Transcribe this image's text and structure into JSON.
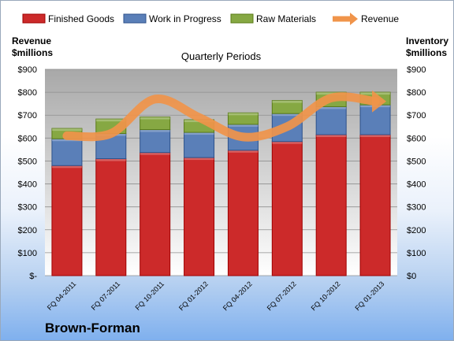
{
  "company_label": "Brown-Forman",
  "chart_data": {
    "type": "bar",
    "stacked": true,
    "title": "Quarterly Periods",
    "left_axis_title": "Revenue $millions",
    "right_axis_title": "Inventory $millions",
    "categories": [
      "FQ 04-2011",
      "FQ 07-2011",
      "FQ 10-2011",
      "FQ 01-2012",
      "FQ 04-2012",
      "FQ 07-2012",
      "FQ 10-2012",
      "FQ 01-2013"
    ],
    "left_tick_labels": [
      "$-",
      "$100",
      "$200",
      "$300",
      "$400",
      "$500",
      "$600",
      "$700",
      "$800",
      "$900"
    ],
    "right_tick_labels": [
      "$0",
      "$100",
      "$200",
      "$300",
      "$400",
      "$500",
      "$600",
      "$700",
      "$800",
      "$900"
    ],
    "ylim": [
      0,
      900
    ],
    "grid": true,
    "legend_position": "top",
    "series": [
      {
        "name": "Finished Goods",
        "kind": "bar",
        "color": "#cc2a2a",
        "values": [
          480,
          510,
          537,
          515,
          547,
          585,
          615,
          615
        ]
      },
      {
        "name": "Work in Progress",
        "kind": "bar",
        "color": "#5a7fb8",
        "values": [
          117,
          110,
          100,
          110,
          113,
          122,
          122,
          130
        ]
      },
      {
        "name": "Raw Materials",
        "kind": "bar",
        "color": "#86a843",
        "values": [
          45,
          63,
          55,
          55,
          50,
          57,
          63,
          55
        ]
      },
      {
        "name": "Revenue",
        "kind": "line",
        "color": "#f0944a",
        "values": [
          610,
          620,
          770,
          690,
          605,
          650,
          775,
          760
        ]
      }
    ]
  }
}
